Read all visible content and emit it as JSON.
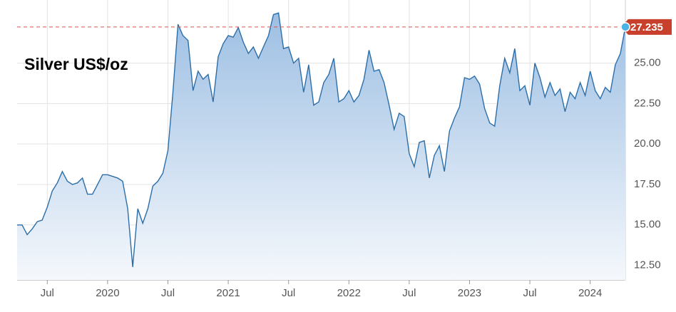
{
  "chart_data": {
    "type": "area",
    "title": "Silver US$/oz",
    "color": "#2b6ea8",
    "grid": true,
    "categories": [
      null,
      null,
      null,
      null,
      null,
      null,
      "Jul",
      null,
      null,
      null,
      null,
      null,
      null,
      null,
      null,
      null,
      null,
      null,
      "2020",
      null,
      null,
      null,
      null,
      null,
      null,
      null,
      null,
      null,
      null,
      null,
      "Jul",
      null,
      null,
      null,
      null,
      null,
      null,
      null,
      null,
      null,
      null,
      null,
      "2021",
      null,
      null,
      null,
      null,
      null,
      null,
      null,
      null,
      null,
      null,
      null,
      "Jul",
      null,
      null,
      null,
      null,
      null,
      null,
      null,
      null,
      null,
      null,
      null,
      "2022",
      null,
      null,
      null,
      null,
      null,
      null,
      null,
      null,
      null,
      null,
      null,
      "Jul",
      null,
      null,
      null,
      null,
      null,
      null,
      null,
      null,
      null,
      null,
      null,
      "2023",
      null,
      null,
      null,
      null,
      null,
      null,
      null,
      null,
      null,
      null,
      null,
      "Jul",
      null,
      null,
      null,
      null,
      null,
      null,
      null,
      null,
      null,
      null,
      null,
      "2024",
      null,
      null,
      null,
      null,
      null,
      null,
      null
    ],
    "values": [
      15.0,
      15.0,
      14.4,
      14.75,
      15.2,
      15.3,
      16.1,
      17.1,
      17.6,
      18.3,
      17.7,
      17.5,
      17.6,
      17.9,
      16.9,
      16.9,
      17.5,
      18.1,
      18.1,
      18.0,
      17.9,
      17.7,
      16.0,
      12.4,
      16.0,
      15.1,
      16.0,
      17.4,
      17.7,
      18.2,
      19.6,
      23.2,
      27.4,
      26.7,
      26.4,
      23.3,
      24.5,
      24.0,
      24.3,
      22.6,
      25.4,
      26.2,
      26.7,
      26.6,
      27.2,
      26.3,
      25.6,
      26.0,
      25.3,
      26.0,
      26.7,
      28.0,
      28.1,
      25.9,
      26.0,
      25.0,
      25.3,
      23.2,
      24.9,
      22.4,
      22.6,
      23.8,
      24.3,
      25.3,
      22.6,
      22.8,
      23.3,
      22.6,
      23.0,
      24.0,
      25.8,
      24.5,
      24.6,
      23.8,
      22.4,
      20.9,
      21.9,
      21.7,
      19.4,
      18.6,
      20.1,
      20.2,
      17.9,
      19.3,
      19.9,
      18.3,
      20.8,
      21.6,
      22.3,
      24.1,
      24.0,
      24.2,
      23.7,
      22.2,
      21.3,
      21.1,
      23.6,
      25.3,
      24.4,
      25.9,
      23.3,
      23.6,
      22.4,
      25.0,
      24.1,
      22.9,
      23.8,
      23.0,
      23.4,
      22.0,
      23.2,
      22.8,
      23.8,
      23.0,
      24.5,
      23.3,
      22.8,
      23.5,
      23.2,
      24.9,
      25.6,
      27.235
    ],
    "ylim": [
      11.6,
      28.9
    ],
    "yticks": [
      {
        "value": 12.5,
        "label": "12.50"
      },
      {
        "value": 15,
        "label": "15.00"
      },
      {
        "value": 17.5,
        "label": "17.50"
      },
      {
        "value": 20,
        "label": "20.00"
      },
      {
        "value": 22.5,
        "label": "22.50"
      },
      {
        "value": 25,
        "label": "25.00"
      }
    ]
  }
}
